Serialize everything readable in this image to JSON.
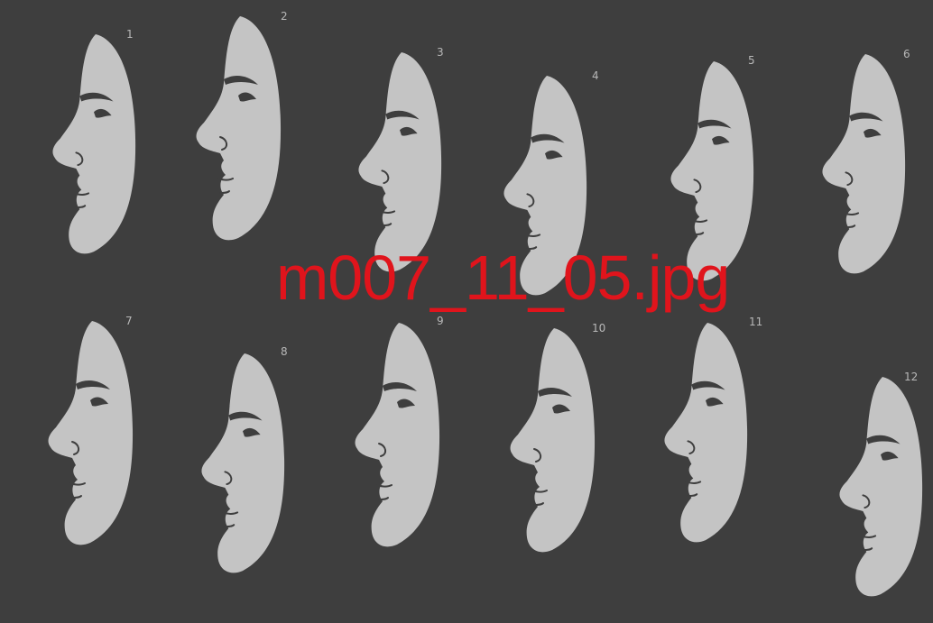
{
  "filename_label": "m007_11_05.jpg",
  "colors": {
    "background": "#3e3e3e",
    "face": "#c4c4c4",
    "label": "#e0141c",
    "number": "#b8b8b8"
  },
  "faces": [
    {
      "number": "1",
      "icon": "face-profile-left-icon"
    },
    {
      "number": "2",
      "icon": "face-profile-left-icon"
    },
    {
      "number": "3",
      "icon": "face-profile-left-icon"
    },
    {
      "number": "4",
      "icon": "face-profile-left-icon"
    },
    {
      "number": "5",
      "icon": "face-profile-left-icon"
    },
    {
      "number": "6",
      "icon": "face-profile-left-icon"
    },
    {
      "number": "7",
      "icon": "face-profile-left-icon"
    },
    {
      "number": "8",
      "icon": "face-profile-left-icon"
    },
    {
      "number": "9",
      "icon": "face-profile-left-icon"
    },
    {
      "number": "10",
      "icon": "face-profile-left-icon"
    },
    {
      "number": "11",
      "icon": "face-profile-left-icon"
    },
    {
      "number": "12",
      "icon": "face-profile-left-icon"
    }
  ]
}
